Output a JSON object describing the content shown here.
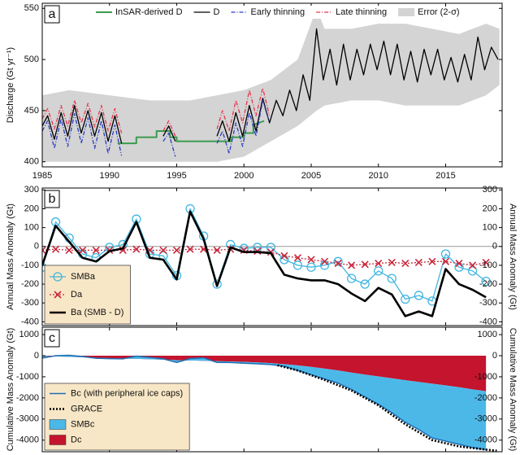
{
  "chart_data": [
    {
      "type": "line",
      "panel_label": "a",
      "ylabel": "Discharge (Gt yr⁻¹)",
      "xlim": [
        1985,
        2019.2
      ],
      "xticks": [
        1985,
        1990,
        1995,
        2000,
        2005,
        2010,
        2015
      ],
      "ylim": [
        395,
        555
      ],
      "yticks": [
        400,
        450,
        500,
        550
      ],
      "band": {
        "name": "Error (2-σ)",
        "color": "#d4d4d4",
        "x": [
          1985,
          1987,
          1990,
          1993,
          1996,
          1998,
          2000,
          2002,
          2004,
          2005.4,
          2006,
          2008,
          2010,
          2012,
          2014,
          2016,
          2018,
          2019
        ],
        "lower": [
          400,
          400,
          400,
          400,
          400,
          400,
          405,
          420,
          435,
          450,
          455,
          460,
          460,
          455,
          455,
          455,
          465,
          475
        ],
        "upper": [
          465,
          470,
          465,
          460,
          460,
          465,
          470,
          480,
          500,
          550,
          530,
          530,
          535,
          535,
          530,
          525,
          535,
          530
        ]
      },
      "series": [
        {
          "name": "InSAR-derived D",
          "color": "#3c9b4e",
          "width": 2,
          "x": [
            1990.6,
            1991.0,
            1992.0,
            1992.0,
            1993.5,
            1993.5,
            1994.5,
            1994.5,
            1995.0,
            1995.0,
            1999.0,
            1999.0,
            2000.0,
            2000.0,
            2000.7,
            2000.7,
            2001.5
          ],
          "values": [
            418,
            418,
            418,
            424,
            424,
            430,
            430,
            424,
            424,
            420,
            420,
            424,
            424,
            428,
            428,
            436,
            440
          ]
        },
        {
          "name": "D",
          "color": "#000000",
          "width": 1.3,
          "x": [
            1985.0,
            1985.4,
            1985.9,
            1986.4,
            1986.9,
            1987.4,
            1987.9,
            1988.4,
            1988.9,
            1989.4,
            1989.9,
            1990.4,
            1990.9,
            1992.5,
            1994.0,
            1994.4,
            1994.9,
            1996.5,
            1998.0,
            1998.4,
            1998.9,
            1999.4,
            1999.9,
            2000.4,
            2000.9,
            2001.4,
            2001.9,
            2002.4,
            2002.9,
            2003.4,
            2003.9,
            2004.4,
            2004.9,
            2005.4,
            2005.9,
            2006.4,
            2006.9,
            2007.4,
            2007.9,
            2008.4,
            2008.9,
            2009.4,
            2009.9,
            2010.4,
            2010.9,
            2011.4,
            2011.9,
            2012.4,
            2012.9,
            2013.4,
            2013.9,
            2014.4,
            2014.9,
            2015.4,
            2015.9,
            2016.4,
            2016.9,
            2017.4,
            2017.9,
            2018.4,
            2018.9
          ],
          "values": [
            435,
            445,
            422,
            448,
            425,
            455,
            428,
            450,
            425,
            448,
            420,
            445,
            418,
            null,
            425,
            435,
            420,
            null,
            425,
            440,
            420,
            448,
            425,
            455,
            430,
            462,
            438,
            460,
            445,
            470,
            450,
            485,
            460,
            530,
            480,
            510,
            475,
            515,
            480,
            510,
            485,
            515,
            490,
            518,
            485,
            515,
            480,
            508,
            478,
            510,
            485,
            510,
            480,
            502,
            478,
            505,
            480,
            522,
            490,
            512,
            500
          ]
        },
        {
          "name": "Early thinning",
          "color": "#2a3cc4",
          "width": 1.3,
          "dash": "5 2 1 2",
          "x": [
            1985.0,
            1985.4,
            1985.9,
            1986.4,
            1986.9,
            1987.4,
            1987.9,
            1988.4,
            1988.9,
            1989.4,
            1989.9,
            1990.4,
            1990.9,
            1992.5,
            1994.0,
            1994.4,
            1994.9,
            1996.5,
            1998.0,
            1998.4,
            1998.9,
            1999.4,
            1999.9,
            2000.4,
            2000.9,
            2001.4,
            2001.9
          ],
          "values": [
            430,
            440,
            413,
            442,
            415,
            447,
            418,
            443,
            413,
            440,
            408,
            436,
            406,
            null,
            420,
            428,
            405,
            null,
            418,
            430,
            408,
            438,
            415,
            448,
            425,
            460,
            438
          ]
        },
        {
          "name": "Late thinning",
          "color": "#e8344e",
          "width": 1.3,
          "dash": "5 2 1 2",
          "x": [
            1985.0,
            1985.4,
            1985.9,
            1986.4,
            1986.9,
            1987.4,
            1987.9,
            1988.4,
            1988.9,
            1989.4,
            1989.9,
            1990.4,
            1990.9,
            1992.5,
            1994.0,
            1994.4,
            1994.9,
            1996.5,
            1998.0,
            1998.4,
            1998.9,
            1999.4,
            1999.9,
            2000.4,
            2000.9,
            2001.4,
            2001.9
          ],
          "values": [
            442,
            452,
            432,
            455,
            435,
            460,
            438,
            457,
            434,
            455,
            430,
            452,
            428,
            null,
            430,
            440,
            425,
            null,
            432,
            450,
            430,
            460,
            438,
            470,
            445,
            472,
            445
          ]
        }
      ]
    },
    {
      "type": "line",
      "panel_label": "b",
      "ylabel": "Annual Mass Anomaly (Gt)",
      "xlim": [
        1985,
        2019.2
      ],
      "xticks": [
        1985,
        1990,
        1995,
        2000,
        2005,
        2010,
        2015
      ],
      "ylim": [
        -420,
        310
      ],
      "yticks": [
        300,
        200,
        100,
        0,
        -100,
        -200,
        -300,
        -400
      ],
      "zero_line": true,
      "x": [
        1985,
        1986,
        1987,
        1988,
        1989,
        1990,
        1991,
        1992,
        1993,
        1994,
        1995,
        1996,
        1997,
        1998,
        1999,
        2000,
        2001,
        2002,
        2003,
        2004,
        2005,
        2006,
        2007,
        2008,
        2009,
        2010,
        2011,
        2012,
        2013,
        2014,
        2015,
        2016,
        2017,
        2018
      ],
      "series": [
        {
          "name": "SMBa",
          "color": "#41b6e0",
          "width": 1.3,
          "marker": "circle",
          "values": [
            -110,
            130,
            45,
            -40,
            -60,
            -5,
            10,
            145,
            -40,
            -50,
            -155,
            200,
            55,
            -200,
            10,
            -10,
            -5,
            -5,
            -70,
            -100,
            -110,
            -100,
            -80,
            -170,
            -200,
            -130,
            -170,
            -280,
            -260,
            -290,
            -40,
            -110,
            -130,
            -185
          ]
        },
        {
          "name": "Da",
          "color": "#c8283c",
          "width": 1.3,
          "marker": "x",
          "dash": "2 2",
          "values": [
            -20,
            -15,
            -20,
            -20,
            -20,
            -20,
            -20,
            -15,
            -20,
            -20,
            -20,
            -15,
            -15,
            -20,
            -15,
            -20,
            -25,
            -30,
            -50,
            -60,
            -70,
            -80,
            -90,
            -100,
            -95,
            -90,
            -85,
            -90,
            -85,
            -80,
            -80,
            -90,
            -100,
            -85
          ]
        },
        {
          "name": "Ba (SMB - D)",
          "color": "#000000",
          "width": 2.6,
          "values": [
            -100,
            110,
            25,
            -60,
            -80,
            -25,
            -10,
            130,
            -60,
            -70,
            -175,
            185,
            40,
            -210,
            -5,
            -30,
            -30,
            -35,
            -150,
            -170,
            -180,
            -180,
            -200,
            -250,
            -290,
            -220,
            -255,
            -370,
            -345,
            -370,
            -120,
            -200,
            -230,
            -270
          ]
        }
      ]
    },
    {
      "type": "stacked_area",
      "panel_label": "c",
      "ylabel": "Cumulative Mass Anomaly (Gt)",
      "xlim": [
        1985,
        2019.2
      ],
      "xticks": [
        1985,
        1990,
        1995,
        2000,
        2005,
        2010,
        2015
      ],
      "ylim": [
        -4550,
        1350
      ],
      "yticks": [
        1000,
        0,
        -1000,
        -2000,
        -3000,
        -4000
      ],
      "x": [
        1985,
        1986,
        1987,
        1988,
        1989,
        1990,
        1991,
        1992,
        1993,
        1994,
        1995,
        1996,
        1997,
        1998,
        1999,
        2000,
        2001,
        2002,
        2003,
        2004,
        2005,
        2006,
        2007,
        2008,
        2009,
        2010,
        2011,
        2012,
        2013,
        2014,
        2015,
        2016,
        2017,
        2018
      ],
      "areas": [
        {
          "name": "Dc",
          "color": "#c4142e",
          "values": [
            -20,
            -35,
            -55,
            -75,
            -95,
            -115,
            -135,
            -150,
            -170,
            -190,
            -210,
            -225,
            -240,
            -260,
            -275,
            -295,
            -320,
            -350,
            -400,
            -460,
            -530,
            -610,
            -700,
            -800,
            -895,
            -985,
            -1070,
            -1160,
            -1245,
            -1325,
            -1405,
            -1495,
            -1595,
            -1680
          ]
        },
        {
          "name": "SMBc",
          "color": "#4cb8e8",
          "values": [
            -90,
            35,
            75,
            35,
            -25,
            -25,
            -15,
            130,
            90,
            40,
            -110,
            90,
            140,
            -60,
            -50,
            -60,
            -65,
            -70,
            -100,
            -240,
            -370,
            -490,
            -600,
            -800,
            -1055,
            -1315,
            -1630,
            -1990,
            -2255,
            -2575,
            -2645,
            -2705,
            -2755,
            -2770
          ]
        }
      ],
      "series": [
        {
          "name": "Bc (with peripheral ice caps)",
          "color": "#1f6fb4",
          "width": 1.5,
          "values": [
            -110,
            0,
            20,
            -40,
            -120,
            -140,
            -150,
            -20,
            -80,
            -150,
            -320,
            -135,
            -100,
            -320,
            -325,
            -355,
            -385,
            -420,
            -500,
            -700,
            -900,
            -1100,
            -1300,
            -1600,
            -1950,
            -2300,
            -2700,
            -3150,
            -3500,
            -3900,
            -4050,
            -4200,
            -4350,
            -4450
          ]
        },
        {
          "name": "GRACE",
          "color": "#000000",
          "width": 2.6,
          "dash": "2 2",
          "x": [
            2002.5,
            2004,
            2006,
            2008,
            2010,
            2012,
            2014,
            2016,
            2018,
            2018.8
          ],
          "values": [
            -450,
            -700,
            -1150,
            -1650,
            -2350,
            -3250,
            -4000,
            -4300,
            -4450,
            -4500
          ]
        }
      ]
    }
  ]
}
